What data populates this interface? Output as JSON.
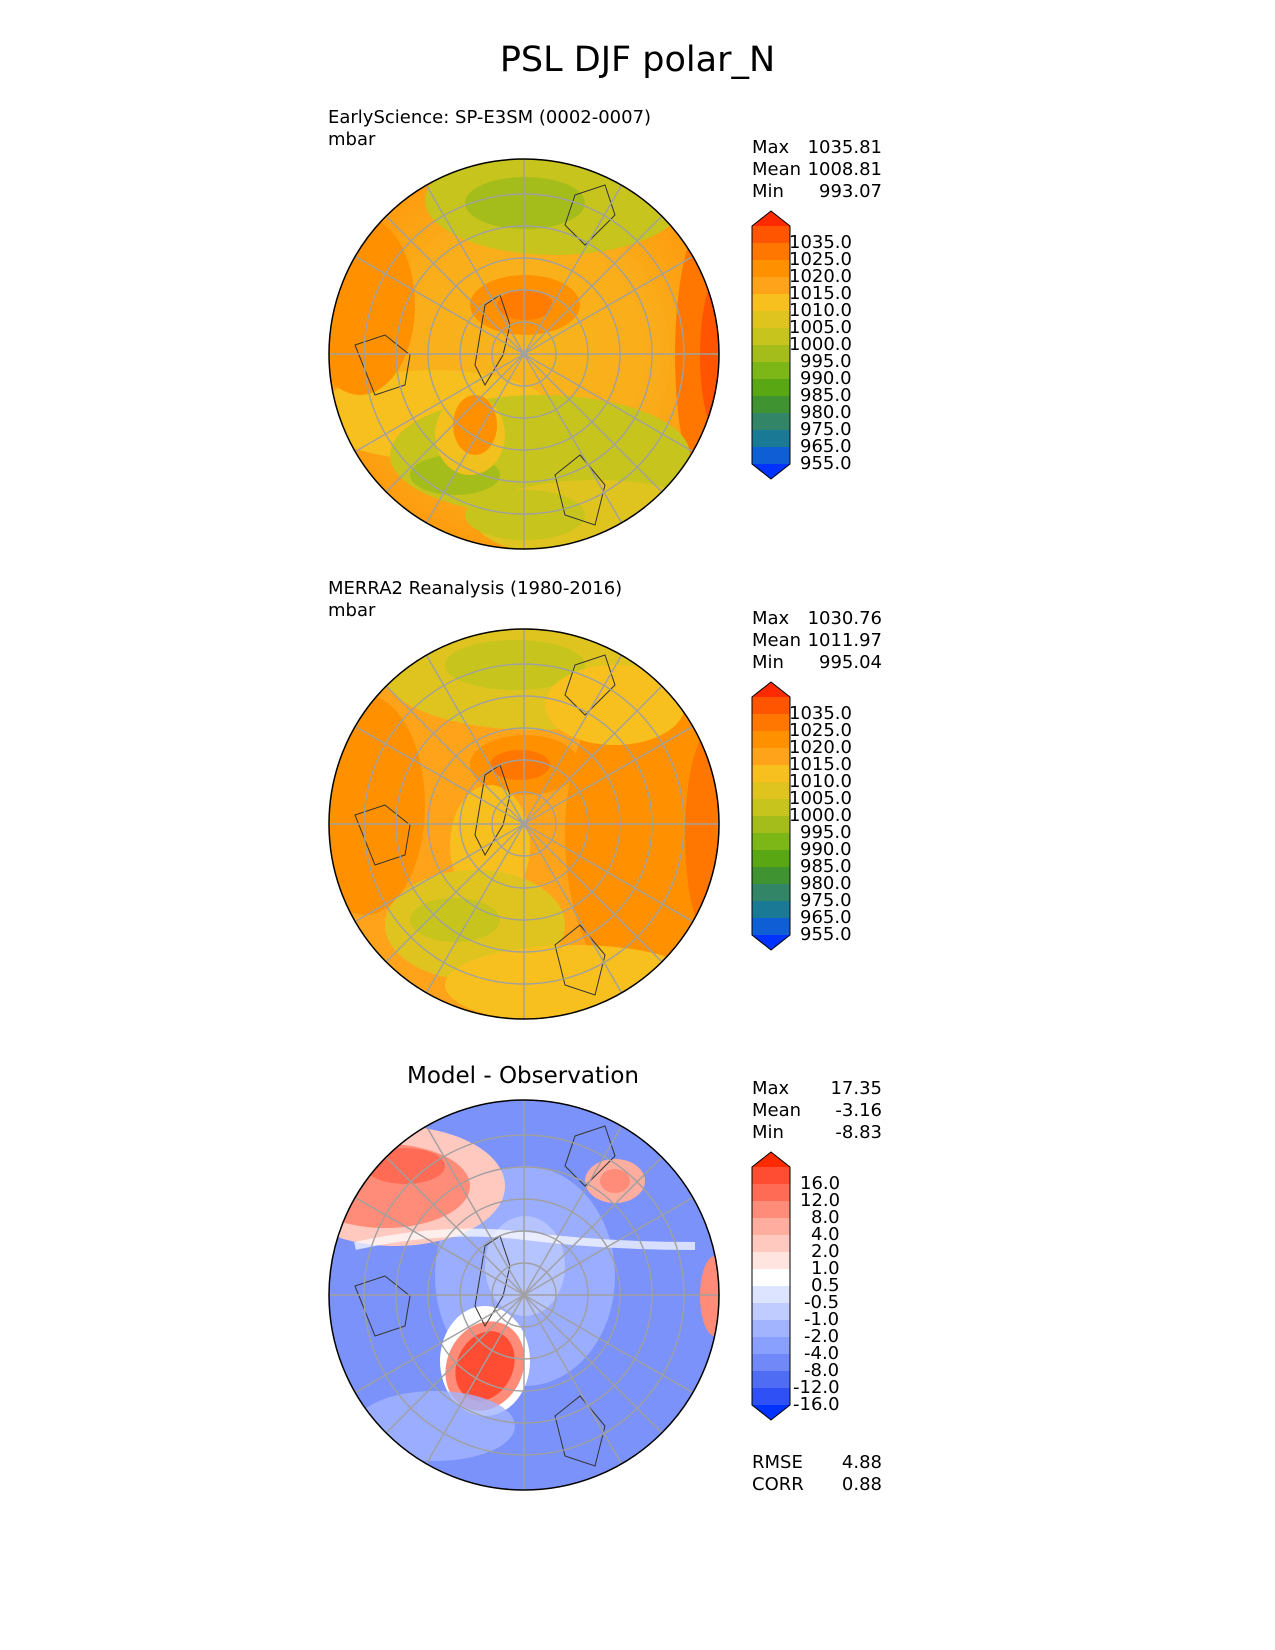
{
  "title": "PSL DJF polar_N",
  "panels": [
    {
      "label_line1": "EarlyScience: SP-E3SM (0002-0007)",
      "label_line2": "mbar",
      "stats": [
        {
          "name": "Max",
          "value": "1035.81"
        },
        {
          "name": "Mean",
          "value": "1008.81"
        },
        {
          "name": "Min",
          "value": "993.07"
        }
      ],
      "colorbar_ticks": [
        "1035.0",
        "1025.0",
        "1020.0",
        "1015.0",
        "1010.0",
        "1005.0",
        "1000.0",
        "995.0",
        "990.0",
        "985.0",
        "980.0",
        "975.0",
        "965.0",
        "955.0"
      ]
    },
    {
      "label_line1": "MERRA2 Reanalysis (1980-2016)",
      "label_line2": "mbar",
      "stats": [
        {
          "name": "Max",
          "value": "1030.76"
        },
        {
          "name": "Mean",
          "value": "1011.97"
        },
        {
          "name": "Min",
          "value": "995.04"
        }
      ],
      "colorbar_ticks": [
        "1035.0",
        "1025.0",
        "1020.0",
        "1015.0",
        "1010.0",
        "1005.0",
        "1000.0",
        "995.0",
        "990.0",
        "985.0",
        "980.0",
        "975.0",
        "965.0",
        "955.0"
      ]
    },
    {
      "title": "Model - Observation",
      "stats": [
        {
          "name": "Max",
          "value": "17.35"
        },
        {
          "name": "Mean",
          "value": "-3.16"
        },
        {
          "name": "Min",
          "value": "-8.83"
        }
      ],
      "colorbar_ticks": [
        "16.0",
        "12.0",
        "8.0",
        "4.0",
        "2.0",
        "1.0",
        "0.5",
        "-0.5",
        "-1.0",
        "-2.0",
        "-4.0",
        "-8.0",
        "-12.0",
        "-16.0"
      ],
      "metrics": [
        {
          "name": "RMSE",
          "value": "4.88"
        },
        {
          "name": "CORR",
          "value": "0.88"
        }
      ]
    }
  ],
  "colors": {
    "psl_scale": [
      "#ff2a00",
      "#ff5500",
      "#ff7700",
      "#ff9100",
      "#ffa41a",
      "#f7c01f",
      "#dfc420",
      "#c6c41d",
      "#a5bd1b",
      "#7db617",
      "#5aa714",
      "#3f9330",
      "#338568",
      "#1a7a96",
      "#0f5ed6",
      "#0033ff"
    ],
    "diff_scale": [
      "#ff2a00",
      "#ff4d33",
      "#ff6b55",
      "#ff8c78",
      "#ffad9f",
      "#ffc9c0",
      "#ffe4df",
      "#ffffff",
      "#dde4ff",
      "#c0ccff",
      "#a3b4ff",
      "#8aa0ff",
      "#7088f8",
      "#4f6cf5",
      "#2e50f5",
      "#0033ff"
    ]
  },
  "chart_data": {
    "type": "map",
    "projection": "north polar stereographic",
    "variable": "PSL",
    "season": "DJF",
    "panels": [
      {
        "name": "EarlyScience: SP-E3SM (0002-0007)",
        "units": "mbar",
        "max": 1035.81,
        "mean": 1008.81,
        "min": 993.07
      },
      {
        "name": "MERRA2 Reanalysis (1980-2016)",
        "units": "mbar",
        "max": 1030.76,
        "mean": 1011.97,
        "min": 995.04
      },
      {
        "name": "Model - Observation",
        "max": 17.35,
        "mean": -3.16,
        "min": -8.83,
        "rmse": 4.88,
        "corr": 0.88
      }
    ],
    "psl_levels": [
      955,
      965,
      975,
      980,
      985,
      990,
      995,
      1000,
      1005,
      1010,
      1015,
      1020,
      1025,
      1035
    ],
    "diff_levels": [
      -16,
      -12,
      -8,
      -4,
      -2,
      -1,
      -0.5,
      0.5,
      1,
      2,
      4,
      8,
      12,
      16
    ]
  }
}
